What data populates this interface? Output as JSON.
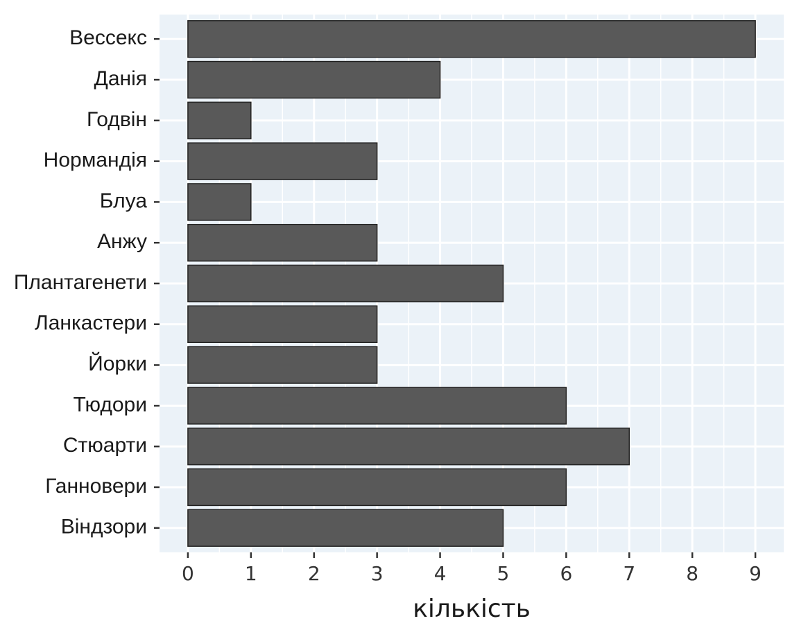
{
  "chart_data": {
    "type": "bar",
    "orientation": "horizontal",
    "x_label": "кількість",
    "categories": [
      "Вессекс",
      "Данія",
      "Годвін",
      "Нормандія",
      "Блуа",
      "Анжу",
      "Плантагенети",
      "Ланкастери",
      "Йорки",
      "Тюдори",
      "Стюарти",
      "Ганновери",
      "Віндзори"
    ],
    "values": [
      9,
      4,
      1,
      3,
      1,
      3,
      5,
      3,
      3,
      6,
      7,
      6,
      5
    ],
    "color": "#595959",
    "xlim": [
      -0.45,
      9.45
    ],
    "xticks": [
      0,
      1,
      2,
      3,
      4,
      5,
      6,
      7,
      8,
      9
    ],
    "grid": true
  }
}
